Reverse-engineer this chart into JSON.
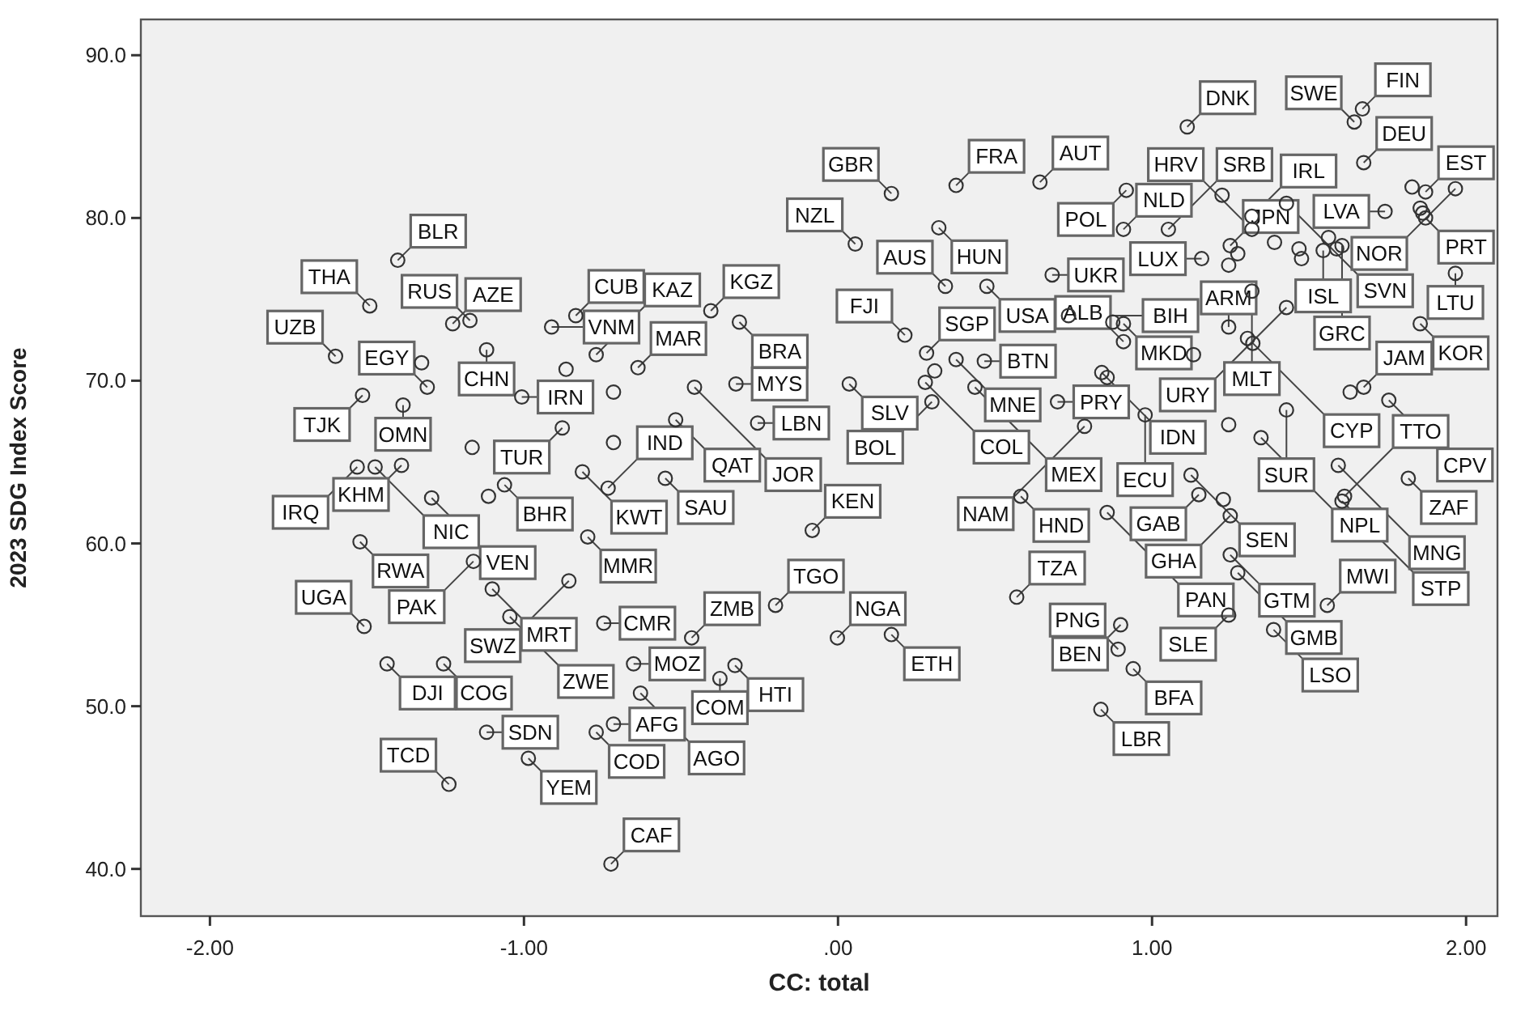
{
  "chart_data": {
    "type": "scatter",
    "xlabel": "CC: total",
    "ylabel": "2023 SDG Index Score",
    "marker": "circle",
    "grid": false,
    "xlim": [
      -2.22,
      2.1
    ],
    "ylim": [
      37.1,
      92.2
    ],
    "xticks": [
      {
        "value": -2,
        "label": "-2.00"
      },
      {
        "value": -1,
        "label": "-1.00"
      },
      {
        "value": 0,
        "label": ".00"
      },
      {
        "value": 1,
        "label": "1.00"
      },
      {
        "value": 2,
        "label": "2.00"
      }
    ],
    "yticks": [
      {
        "value": 40,
        "label": "40.0"
      },
      {
        "value": 50,
        "label": "50.0"
      },
      {
        "value": 60,
        "label": "60.0"
      },
      {
        "value": 70,
        "label": "70.0"
      },
      {
        "value": 80,
        "label": "80.0"
      },
      {
        "value": 90,
        "label": "90.0"
      }
    ],
    "series": [
      {
        "color": "#333333",
        "x": [
          -1.402,
          -1.491,
          -1.227,
          -1.172,
          -0.835,
          -0.912,
          -0.77,
          -0.637,
          -1.6,
          -1.308,
          -1.326,
          -1.514,
          -1.007,
          -0.878,
          -1.119,
          -0.866,
          -1.385,
          -1.39,
          -1.531,
          -1.474,
          -1.165,
          -1.062,
          -1.113,
          -0.814,
          -0.732,
          -1.294,
          -1.522,
          -0.797,
          -0.715,
          -0.715,
          -0.517,
          -1.161,
          -1.101,
          -1.509,
          -1.256,
          -1.436,
          -1.045,
          -0.857,
          -0.746,
          -1.119,
          -1.239,
          -0.986,
          -0.77,
          -0.715,
          -0.651,
          -0.723,
          -0.466,
          -0.199,
          -0.328,
          -0.376,
          -0.629,
          -0.002,
          0.17,
          0.569,
          0.17,
          0.376,
          0.643,
          0.055,
          0.321,
          0.342,
          0.474,
          0.376,
          0.213,
          -0.405,
          -0.314,
          -0.325,
          -0.457,
          0.282,
          0.036,
          0.308,
          0.278,
          0.299,
          -0.256,
          -0.55,
          -0.082,
          0.436,
          0.466,
          0.699,
          0.582,
          0.682,
          0.734,
          1.112,
          1.67,
          1.644,
          1.318,
          1.318,
          1.223,
          0.918,
          0.909,
          1.052,
          1.428,
          1.674,
          1.742,
          1.966,
          1.871,
          1.828,
          1.854,
          1.862,
          1.871,
          1.605,
          1.562,
          1.545,
          1.588,
          1.854,
          1.966,
          1.249,
          1.273,
          1.244,
          1.158,
          1.318,
          1.428,
          1.39,
          1.468,
          1.476,
          1.321,
          1.304,
          0.875,
          0.909,
          0.909,
          0.84,
          0.857,
          1.244,
          1.132,
          1.428,
          0.978,
          0.785,
          1.244,
          1.347,
          1.124,
          1.149,
          1.227,
          1.249,
          0.857,
          1.249,
          1.273,
          1.558,
          1.244,
          1.387,
          0.9,
          0.892,
          0.94,
          0.837,
          1.613,
          1.605,
          1.816,
          1.593,
          1.674,
          1.631,
          1.754
        ],
        "values": [
          77.4,
          74.6,
          73.5,
          73.7,
          74.0,
          73.3,
          71.6,
          70.8,
          71.5,
          69.6,
          71.1,
          69.1,
          69.0,
          67.1,
          71.9,
          70.7,
          68.5,
          64.8,
          64.7,
          64.7,
          65.9,
          63.6,
          62.9,
          64.4,
          63.4,
          62.8,
          60.1,
          60.4,
          69.3,
          66.2,
          67.6,
          58.9,
          57.2,
          54.9,
          52.6,
          52.6,
          55.5,
          57.7,
          55.1,
          48.4,
          45.2,
          46.8,
          48.4,
          48.9,
          52.6,
          40.3,
          54.2,
          56.2,
          52.5,
          51.7,
          50.8,
          54.2,
          54.4,
          56.7,
          81.5,
          82.0,
          82.2,
          78.4,
          79.4,
          75.8,
          75.8,
          71.3,
          72.8,
          74.3,
          73.6,
          69.8,
          69.6,
          71.7,
          69.8,
          70.6,
          69.9,
          68.7,
          67.4,
          64.0,
          60.8,
          69.6,
          71.2,
          68.7,
          62.9,
          76.5,
          74.0,
          85.6,
          86.7,
          85.9,
          80.1,
          79.3,
          81.4,
          81.7,
          79.3,
          79.3,
          80.9,
          83.4,
          80.4,
          81.8,
          81.6,
          81.9,
          80.6,
          80.3,
          80.0,
          78.3,
          78.8,
          78.0,
          78.1,
          73.5,
          76.6,
          78.3,
          77.8,
          77.1,
          77.5,
          75.5,
          74.5,
          78.5,
          78.1,
          77.5,
          72.3,
          72.6,
          73.6,
          73.5,
          72.4,
          70.5,
          70.2,
          73.3,
          71.6,
          68.2,
          67.9,
          67.2,
          67.3,
          66.5,
          64.2,
          63.0,
          62.7,
          61.7,
          61.9,
          59.3,
          58.2,
          56.2,
          55.6,
          54.7,
          55.0,
          53.5,
          52.3,
          49.8,
          62.9,
          62.6,
          64.0,
          64.8,
          69.6,
          69.3,
          68.8
        ]
      }
    ],
    "annotations": [
      {
        "text": "BLR",
        "x": -1.402,
        "y": 77.4
      },
      {
        "text": "THA",
        "x": -1.491,
        "y": 74.6
      },
      {
        "text": "AZE",
        "x": -1.227,
        "y": 73.5
      },
      {
        "text": "RUS",
        "x": -1.172,
        "y": 73.7
      },
      {
        "text": "CUB",
        "x": -0.835,
        "y": 74.0
      },
      {
        "text": "VNM",
        "x": -0.912,
        "y": 73.3
      },
      {
        "text": "KAZ",
        "x": -0.77,
        "y": 71.6
      },
      {
        "text": "MAR",
        "x": -0.637,
        "y": 70.8
      },
      {
        "text": "UZB",
        "x": -1.6,
        "y": 71.5
      },
      {
        "text": "EGY",
        "x": -1.308,
        "y": 69.6
      },
      {
        "text": "TJK",
        "x": -1.514,
        "y": 69.1
      },
      {
        "text": "IRN",
        "x": -1.007,
        "y": 69.0
      },
      {
        "text": "TUR",
        "x": -0.878,
        "y": 67.1
      },
      {
        "text": "CHN",
        "x": -1.119,
        "y": 71.9
      },
      {
        "text": "OMN",
        "x": -1.385,
        "y": 68.5
      },
      {
        "text": "KHM",
        "x": -1.39,
        "y": 64.8
      },
      {
        "text": "IRQ",
        "x": -1.531,
        "y": 64.7
      },
      {
        "text": "NIC",
        "x": -1.474,
        "y": 64.7
      },
      {
        "text": "BHR",
        "x": -1.062,
        "y": 63.6
      },
      {
        "text": "KWT",
        "x": -0.814,
        "y": 64.4
      },
      {
        "text": "IND",
        "x": -0.732,
        "y": 63.4
      },
      {
        "text": "VEN",
        "x": -1.294,
        "y": 62.8
      },
      {
        "text": "RWA",
        "x": -1.522,
        "y": 60.1
      },
      {
        "text": "MMR",
        "x": -0.797,
        "y": 60.4
      },
      {
        "text": "QAT",
        "x": -0.517,
        "y": 67.6
      },
      {
        "text": "PAK",
        "x": -1.161,
        "y": 58.9
      },
      {
        "text": "MRT",
        "x": -1.101,
        "y": 57.2
      },
      {
        "text": "UGA",
        "x": -1.509,
        "y": 54.9
      },
      {
        "text": "COG",
        "x": -1.256,
        "y": 52.6
      },
      {
        "text": "DJI",
        "x": -1.436,
        "y": 52.6
      },
      {
        "text": "ZWE",
        "x": -1.045,
        "y": 55.5
      },
      {
        "text": "SWZ",
        "x": -0.857,
        "y": 57.7
      },
      {
        "text": "CMR",
        "x": -0.746,
        "y": 55.1
      },
      {
        "text": "SDN",
        "x": -1.119,
        "y": 48.4
      },
      {
        "text": "TCD",
        "x": -1.239,
        "y": 45.2
      },
      {
        "text": "YEM",
        "x": -0.986,
        "y": 46.8
      },
      {
        "text": "COD",
        "x": -0.77,
        "y": 48.4
      },
      {
        "text": "AFG",
        "x": -0.715,
        "y": 48.9
      },
      {
        "text": "MOZ",
        "x": -0.651,
        "y": 52.6
      },
      {
        "text": "CAF",
        "x": -0.723,
        "y": 40.3
      },
      {
        "text": "ZMB",
        "x": -0.466,
        "y": 54.2
      },
      {
        "text": "TGO",
        "x": -0.199,
        "y": 56.2
      },
      {
        "text": "HTI",
        "x": -0.328,
        "y": 52.5
      },
      {
        "text": "COM",
        "x": -0.376,
        "y": 51.7
      },
      {
        "text": "AGO",
        "x": -0.629,
        "y": 50.8
      },
      {
        "text": "NGA",
        "x": -0.002,
        "y": 54.2
      },
      {
        "text": "ETH",
        "x": 0.17,
        "y": 54.4
      },
      {
        "text": "TZA",
        "x": 0.569,
        "y": 56.7
      },
      {
        "text": "GBR",
        "x": 0.17,
        "y": 81.5
      },
      {
        "text": "FRA",
        "x": 0.376,
        "y": 82.0
      },
      {
        "text": "AUT",
        "x": 0.643,
        "y": 82.2
      },
      {
        "text": "NZL",
        "x": 0.055,
        "y": 78.4
      },
      {
        "text": "HUN",
        "x": 0.321,
        "y": 79.4
      },
      {
        "text": "AUS",
        "x": 0.342,
        "y": 75.8
      },
      {
        "text": "USA",
        "x": 0.474,
        "y": 75.8
      },
      {
        "text": "MNE",
        "x": 0.376,
        "y": 71.3
      },
      {
        "text": "FJI",
        "x": 0.213,
        "y": 72.8
      },
      {
        "text": "KGZ",
        "x": -0.405,
        "y": 74.3
      },
      {
        "text": "BRA",
        "x": -0.314,
        "y": 73.6
      },
      {
        "text": "MYS",
        "x": -0.325,
        "y": 69.8
      },
      {
        "text": "JOR",
        "x": -0.457,
        "y": 69.6
      },
      {
        "text": "SGP",
        "x": 0.282,
        "y": 71.7
      },
      {
        "text": "SLV",
        "x": 0.036,
        "y": 69.8
      },
      {
        "text": "COL",
        "x": 0.278,
        "y": 69.9
      },
      {
        "text": "BOL",
        "x": 0.299,
        "y": 68.7
      },
      {
        "text": "LBN",
        "x": -0.256,
        "y": 67.4
      },
      {
        "text": "SAU",
        "x": -0.55,
        "y": 64.0
      },
      {
        "text": "KEN",
        "x": -0.082,
        "y": 60.8
      },
      {
        "text": "MEX",
        "x": 0.436,
        "y": 69.6
      },
      {
        "text": "BTN",
        "x": 0.466,
        "y": 71.2
      },
      {
        "text": "PRY",
        "x": 0.699,
        "y": 68.7
      },
      {
        "text": "HND",
        "x": 0.582,
        "y": 62.9
      },
      {
        "text": "UKR",
        "x": 0.682,
        "y": 76.5
      },
      {
        "text": "BIH",
        "x": 0.734,
        "y": 74.0
      },
      {
        "text": "DNK",
        "x": 1.112,
        "y": 85.6
      },
      {
        "text": "FIN",
        "x": 1.67,
        "y": 86.7
      },
      {
        "text": "SWE",
        "x": 1.644,
        "y": 85.9
      },
      {
        "text": "IRL",
        "x": 1.318,
        "y": 80.1
      },
      {
        "text": "HRV",
        "x": 1.318,
        "y": 79.3
      },
      {
        "text": "POL",
        "x": 0.918,
        "y": 81.7
      },
      {
        "text": "NLD",
        "x": 0.909,
        "y": 79.3
      },
      {
        "text": "SRB",
        "x": 1.052,
        "y": 79.3
      },
      {
        "text": "SVN",
        "x": 1.428,
        "y": 80.9
      },
      {
        "text": "DEU",
        "x": 1.674,
        "y": 83.4
      },
      {
        "text": "LVA",
        "x": 1.742,
        "y": 80.4
      },
      {
        "text": "NOR",
        "x": 1.966,
        "y": 81.8
      },
      {
        "text": "EST",
        "x": 1.871,
        "y": 81.6
      },
      {
        "text": "PRT",
        "x": 1.871,
        "y": 80.0
      },
      {
        "text": "GRC",
        "x": 1.605,
        "y": 78.3
      },
      {
        "text": "ISL",
        "x": 1.545,
        "y": 78.0
      },
      {
        "text": "KOR",
        "x": 1.854,
        "y": 73.5
      },
      {
        "text": "LTU",
        "x": 1.966,
        "y": 76.6
      },
      {
        "text": "JPN",
        "x": 1.249,
        "y": 78.3
      },
      {
        "text": "LUX",
        "x": 1.158,
        "y": 77.5
      },
      {
        "text": "MLT",
        "x": 1.318,
        "y": 75.5
      },
      {
        "text": "URY",
        "x": 1.428,
        "y": 74.5
      },
      {
        "text": "CYP",
        "x": 1.321,
        "y": 72.3
      },
      {
        "text": "MKD",
        "x": 0.909,
        "y": 73.5
      },
      {
        "text": "ALB",
        "x": 0.909,
        "y": 72.4
      },
      {
        "text": "IDN",
        "x": 0.84,
        "y": 70.5
      },
      {
        "text": "ARM",
        "x": 1.244,
        "y": 73.3
      },
      {
        "text": "SUR",
        "x": 1.428,
        "y": 68.2
      },
      {
        "text": "ECU",
        "x": 0.978,
        "y": 67.9
      },
      {
        "text": "NAM",
        "x": 0.785,
        "y": 67.2
      },
      {
        "text": "NPL",
        "x": 1.347,
        "y": 66.5
      },
      {
        "text": "SEN",
        "x": 1.124,
        "y": 64.2
      },
      {
        "text": "GAB",
        "x": 1.149,
        "y": 63.0
      },
      {
        "text": "GHA",
        "x": 1.249,
        "y": 61.7
      },
      {
        "text": "PAN",
        "x": 0.857,
        "y": 61.9
      },
      {
        "text": "GTM",
        "x": 1.249,
        "y": 59.3
      },
      {
        "text": "GMB",
        "x": 1.273,
        "y": 58.2
      },
      {
        "text": "MWI",
        "x": 1.558,
        "y": 56.2
      },
      {
        "text": "SLE",
        "x": 1.244,
        "y": 55.6
      },
      {
        "text": "LSO",
        "x": 1.387,
        "y": 54.7
      },
      {
        "text": "BEN",
        "x": 0.9,
        "y": 55.0
      },
      {
        "text": "PNG",
        "x": 0.892,
        "y": 53.5
      },
      {
        "text": "BFA",
        "x": 0.94,
        "y": 52.3
      },
      {
        "text": "LBR",
        "x": 0.837,
        "y": 49.8
      },
      {
        "text": "TTO",
        "x": 1.613,
        "y": 62.9
      },
      {
        "text": "STP",
        "x": 1.605,
        "y": 62.6
      },
      {
        "text": "ZAF",
        "x": 1.816,
        "y": 64.0
      },
      {
        "text": "MNG",
        "x": 1.593,
        "y": 64.8
      },
      {
        "text": "JAM",
        "x": 1.674,
        "y": 69.6
      },
      {
        "text": "CPV",
        "x": 1.754,
        "y": 68.8
      }
    ]
  }
}
